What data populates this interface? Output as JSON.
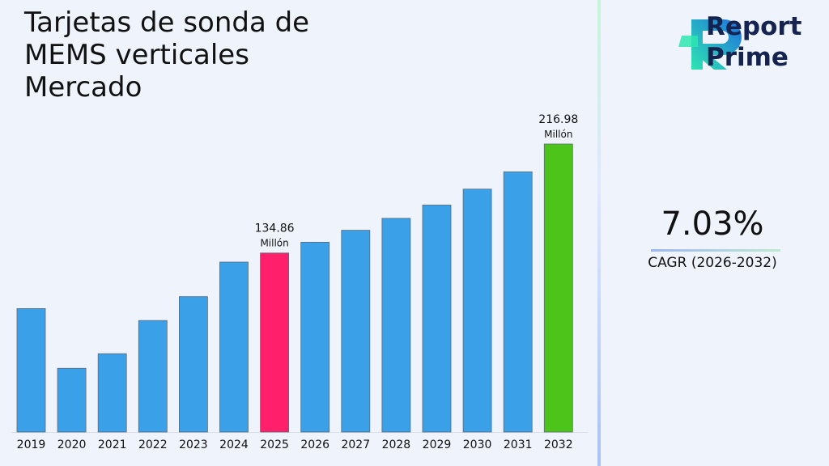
{
  "title": "Tarjetas de sonda de MEMS verticales Mercado",
  "brand": {
    "line1": "Report",
    "line2": "Prime",
    "colors": {
      "text": "#14234f",
      "mark_teal": "#2ee6b0",
      "mark_blue": "#1f6fe0"
    }
  },
  "cagr": {
    "value": "7.03%",
    "label": "CAGR (2026-2032)"
  },
  "colors": {
    "default_bar": "#3aa0e8",
    "highlight_2025": "#ff1f6a",
    "highlight_2032": "#4cc41a"
  },
  "chart_data": {
    "type": "bar",
    "categories": [
      "2019",
      "2020",
      "2021",
      "2022",
      "2023",
      "2024",
      "2025",
      "2026",
      "2027",
      "2028",
      "2029",
      "2030",
      "2031",
      "2032"
    ],
    "values": [
      93,
      48,
      59,
      84,
      102,
      128,
      134.86,
      143,
      152,
      161,
      171,
      183,
      196,
      216.98
    ],
    "ylim": [
      0,
      216.98
    ],
    "annotations": [
      {
        "category": "2025",
        "value": "134.86",
        "unit": "Millón"
      },
      {
        "category": "2032",
        "value": "216.98",
        "unit": "Millón"
      }
    ],
    "highlight": {
      "2025": "#ff1f6a",
      "2032": "#4cc41a"
    }
  }
}
